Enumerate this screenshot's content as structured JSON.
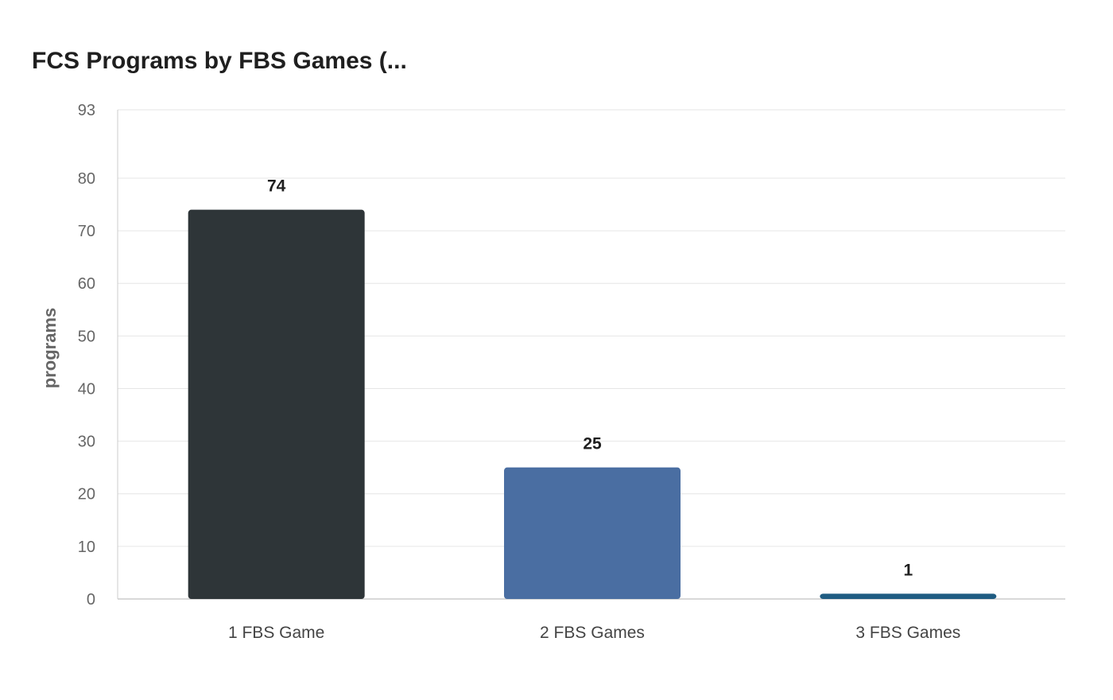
{
  "chart_data": {
    "type": "bar",
    "title": "FCS Programs by FBS Games (...",
    "xlabel": "",
    "ylabel": "programs",
    "categories": [
      "1 FBS Game",
      "2 FBS Games",
      "3 FBS Games"
    ],
    "values": [
      74,
      25,
      1
    ],
    "colors": [
      "#2e3538",
      "#4a6ea2",
      "#1f5c82"
    ],
    "ylim": [
      0,
      93
    ],
    "yticks": [
      0,
      10,
      20,
      30,
      40,
      50,
      60,
      70,
      80,
      93
    ],
    "grid": true,
    "legend": "none"
  }
}
